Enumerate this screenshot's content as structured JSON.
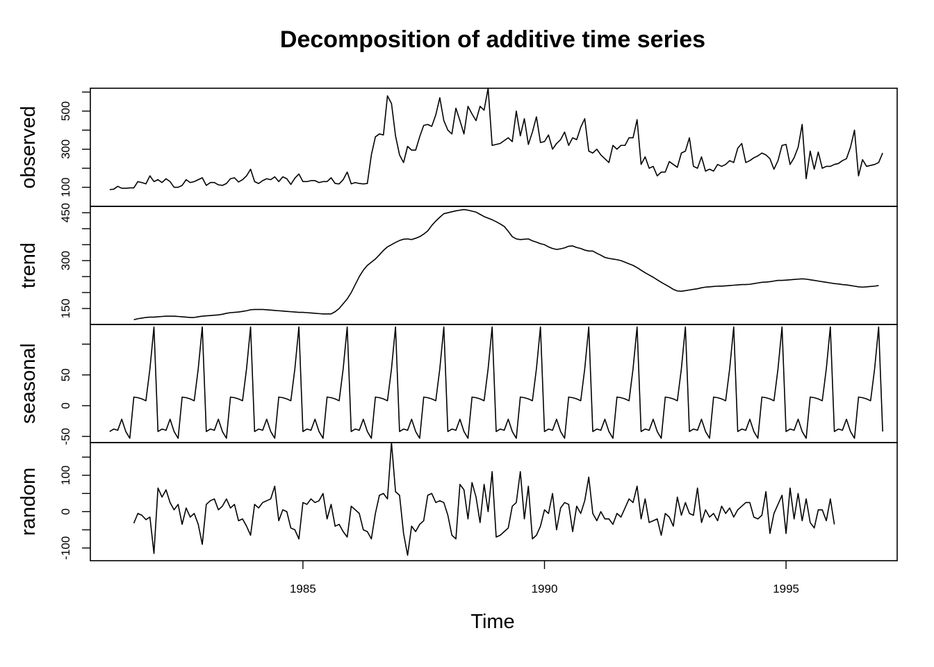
{
  "chart_data": {
    "type": "line",
    "title": "Decomposition of additive time series",
    "xlabel": "Time",
    "xlim": [
      1980.6,
      1997.3
    ],
    "x_ticks": [
      1985,
      1990,
      1995
    ],
    "x_tick_labels": [
      "1985",
      "1990",
      "1995"
    ],
    "start_time": 1981.0,
    "frequency": 12,
    "panels": [
      {
        "name": "observed",
        "ylabel": "observed",
        "ylim": [
          0,
          620
        ],
        "tick_values": [
          100,
          200,
          300,
          400,
          500,
          600
        ],
        "labeled_ticks": [
          100,
          300,
          500
        ],
        "tick_labels": [
          "100",
          "300",
          "500"
        ],
        "values": [
          88,
          90,
          105,
          95,
          95,
          97,
          97,
          130,
          125,
          118,
          160,
          130,
          140,
          125,
          145,
          130,
          100,
          100,
          110,
          140,
          125,
          130,
          140,
          150,
          110,
          125,
          125,
          113,
          110,
          120,
          145,
          150,
          128,
          140,
          160,
          195,
          130,
          120,
          135,
          145,
          140,
          155,
          130,
          155,
          145,
          115,
          148,
          170,
          130,
          130,
          135,
          135,
          125,
          130,
          130,
          150,
          120,
          118,
          140,
          180,
          118,
          125,
          120,
          118,
          120,
          270,
          365,
          380,
          375,
          580,
          540,
          370,
          270,
          230,
          315,
          295,
          295,
          365,
          425,
          430,
          420,
          480,
          570,
          450,
          400,
          380,
          515,
          450,
          380,
          525,
          485,
          450,
          525,
          505,
          620,
          320,
          325,
          330,
          345,
          360,
          340,
          500,
          370,
          460,
          325,
          390,
          470,
          335,
          340,
          375,
          300,
          330,
          350,
          390,
          320,
          360,
          350,
          415,
          460,
          290,
          280,
          300,
          270,
          250,
          230,
          320,
          300,
          320,
          320,
          360,
          360,
          455,
          220,
          260,
          200,
          210,
          160,
          180,
          180,
          235,
          220,
          205,
          280,
          290,
          360,
          210,
          200,
          260,
          185,
          195,
          185,
          220,
          210,
          220,
          240,
          230,
          305,
          330,
          230,
          240,
          255,
          265,
          280,
          270,
          250,
          195,
          240,
          320,
          325,
          220,
          255,
          310,
          430,
          145,
          290,
          195,
          285,
          200,
          210,
          210,
          220,
          225,
          240,
          250,
          310,
          400,
          160,
          245,
          210,
          215,
          220,
          230,
          280
        ],
        "value_start_index": 0
      },
      {
        "name": "trend",
        "ylabel": "trend",
        "ylim": [
          100,
          470
        ],
        "tick_values": [
          150,
          200,
          250,
          300,
          350,
          400,
          450
        ],
        "labeled_ticks": [
          150,
          300,
          450
        ],
        "tick_labels": [
          "150",
          "300",
          "450"
        ],
        "values": [
          115,
          118,
          120,
          122,
          123,
          123,
          124,
          125,
          126,
          126,
          126,
          125,
          124,
          123,
          122,
          122,
          124,
          126,
          127,
          128,
          129,
          130,
          132,
          135,
          137,
          138,
          139,
          141,
          143,
          146,
          147,
          147,
          147,
          146,
          145,
          144,
          143,
          142,
          141,
          140,
          139,
          138,
          138,
          137,
          136,
          135,
          134,
          133,
          133,
          133,
          140,
          150,
          165,
          180,
          200,
          225,
          250,
          270,
          285,
          295,
          305,
          318,
          332,
          343,
          350,
          357,
          363,
          367,
          368,
          366,
          370,
          375,
          383,
          393,
          410,
          424,
          436,
          447,
          450,
          453,
          456,
          458,
          460,
          458,
          455,
          452,
          445,
          438,
          433,
          428,
          422,
          415,
          407,
          392,
          375,
          368,
          366,
          367,
          368,
          362,
          358,
          353,
          350,
          343,
          338,
          335,
          337,
          340,
          345,
          346,
          341,
          338,
          333,
          330,
          330,
          323,
          317,
          310,
          307,
          305,
          303,
          300,
          295,
          290,
          285,
          278,
          270,
          262,
          255,
          248,
          240,
          232,
          225,
          218,
          210,
          205,
          204,
          206,
          208,
          210,
          212,
          215,
          217,
          218,
          219,
          220,
          220,
          221,
          222,
          223,
          224,
          225,
          225,
          226,
          228,
          230,
          232,
          233,
          234,
          236,
          238,
          238,
          239,
          240,
          241,
          242,
          243,
          242,
          240,
          238,
          236,
          234,
          232,
          230,
          228,
          227,
          225,
          224,
          222,
          220,
          218,
          217,
          218,
          219,
          220,
          222
        ],
        "value_start_index": 6
      },
      {
        "name": "seasonal",
        "ylabel": "seasonal",
        "ylim": [
          -60,
          132
        ],
        "tick_values": [
          -50,
          0,
          50,
          100
        ],
        "labeled_ticks": [
          -50,
          0,
          50
        ],
        "tick_labels": [
          "-50",
          "0",
          "50"
        ],
        "values": [
          -42,
          -38,
          -40,
          -22,
          -42,
          -53,
          14,
          13,
          11,
          8,
          60,
          128
        ],
        "pattern": "repeats every 12 months"
      },
      {
        "name": "random",
        "ylabel": "random",
        "ylim": [
          -135,
          190
        ],
        "tick_values": [
          -100,
          -50,
          0,
          50,
          100,
          150
        ],
        "labeled_ticks": [
          -100,
          0,
          100
        ],
        "tick_labels": [
          "-100",
          "0",
          "100"
        ],
        "values": [
          -32,
          -5,
          -10,
          -22,
          -15,
          -115,
          65,
          40,
          60,
          25,
          5,
          20,
          -35,
          10,
          -15,
          -5,
          -35,
          -90,
          20,
          30,
          35,
          5,
          15,
          35,
          10,
          20,
          -25,
          -20,
          -40,
          -65,
          20,
          10,
          25,
          30,
          35,
          70,
          -25,
          5,
          0,
          -45,
          -50,
          -75,
          25,
          20,
          35,
          25,
          30,
          50,
          -20,
          20,
          -40,
          -35,
          -55,
          -70,
          15,
          5,
          -5,
          -50,
          -55,
          -75,
          -5,
          45,
          50,
          35,
          190,
          55,
          45,
          -60,
          -120,
          -40,
          -55,
          -35,
          -25,
          45,
          50,
          25,
          30,
          25,
          -10,
          -65,
          -75,
          75,
          60,
          -20,
          80,
          40,
          -30,
          75,
          0,
          110,
          -70,
          -65,
          -55,
          -45,
          15,
          25,
          110,
          -20,
          70,
          -75,
          -65,
          -40,
          5,
          -5,
          50,
          -50,
          10,
          25,
          20,
          -55,
          15,
          -5,
          30,
          95,
          -5,
          -25,
          0,
          -20,
          -20,
          -35,
          -5,
          -15,
          10,
          35,
          25,
          70,
          -20,
          35,
          -30,
          -25,
          -20,
          -65,
          -5,
          -15,
          -40,
          40,
          -10,
          25,
          -5,
          -10,
          65,
          -30,
          5,
          -15,
          -5,
          -25,
          15,
          -5,
          10,
          -15,
          5,
          15,
          25,
          25,
          -15,
          -20,
          -10,
          55,
          -60,
          -5,
          20,
          45,
          -60,
          65,
          -20,
          50,
          -25,
          35,
          -30,
          -45,
          5,
          5,
          -25,
          35,
          -35
        ],
        "value_start_index": 6
      }
    ]
  }
}
